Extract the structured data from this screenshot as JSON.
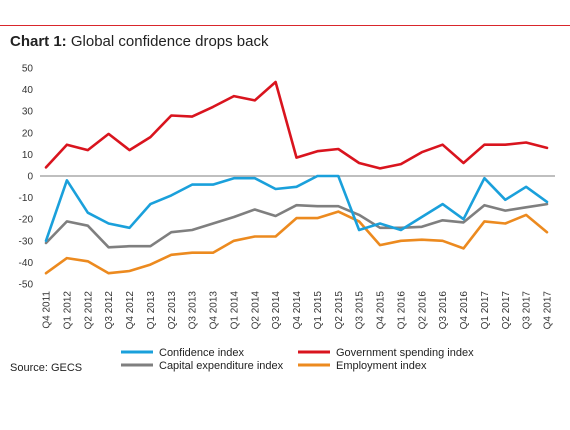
{
  "title": {
    "label": "Chart 1:",
    "text": "Global confidence drops back"
  },
  "source": "Source: GECS",
  "colors": {
    "rule": "#d9262c",
    "confidence": "#1aa0db",
    "government": "#d9141e",
    "capex": "#7f7f7f",
    "employment": "#ec8a1f",
    "axis": "#555555"
  },
  "chart_data": {
    "type": "line",
    "title": "Global confidence drops back",
    "xlabel": "",
    "ylabel": "",
    "ylim": [
      -50,
      50
    ],
    "yticks": [
      50,
      40,
      30,
      20,
      10,
      0,
      -10,
      -20,
      -30,
      -40,
      -50
    ],
    "grid": false,
    "legend_position": "bottom",
    "categories": [
      "Q4 2011",
      "Q1 2012",
      "Q2 2012",
      "Q3 2012",
      "Q4 2012",
      "Q1 2013",
      "Q2 2013",
      "Q3 2013",
      "Q4 2013",
      "Q1 2014",
      "Q2 2014",
      "Q3 2014",
      "Q4 2014",
      "Q1 2015",
      "Q2 2015",
      "Q3 2015",
      "Q4 2015",
      "Q1 2016",
      "Q2 2016",
      "Q3 2016",
      "Q4 2016",
      "Q1 2017",
      "Q2 2017",
      "Q3 2017",
      "Q4 2017"
    ],
    "series": [
      {
        "name": "Confidence index",
        "key": "confidence",
        "values": [
          -30,
          -2,
          -17,
          -22,
          -24,
          -13,
          -9,
          -4,
          -4,
          -1,
          -1,
          -6,
          -5,
          0,
          0,
          -25,
          -22,
          -25,
          -19,
          -13,
          -20,
          -1,
          -11,
          -5,
          -12
        ]
      },
      {
        "name": "Government spending index",
        "key": "government",
        "values": [
          4,
          14.5,
          12,
          19.5,
          12,
          18,
          28,
          27.5,
          32,
          37,
          35,
          43.5,
          8.5,
          11.5,
          12.5,
          6,
          3.5,
          5.5,
          11,
          14.5,
          6,
          14.5,
          14.5,
          15.5,
          13
        ]
      },
      {
        "name": "Capital expenditure index",
        "key": "capex",
        "values": [
          -31,
          -21,
          -23,
          -33,
          -32.5,
          -32.5,
          -26,
          -25,
          -22,
          -19,
          -15.5,
          -18.5,
          -13.5,
          -14,
          -14,
          -18,
          -24,
          -24,
          -23.5,
          -20.5,
          -21.5,
          -13.5,
          -16,
          -14.5,
          -13
        ]
      },
      {
        "name": "Employment index",
        "key": "employment",
        "values": [
          -45,
          -38,
          -39.5,
          -45,
          -44,
          -41,
          -36.5,
          -35.5,
          -35.5,
          -30,
          -28,
          -28,
          -19.5,
          -19.5,
          -16.5,
          -21,
          -32,
          -30,
          -29.5,
          -30,
          -33.5,
          -21,
          -22,
          -18,
          -26
        ]
      }
    ],
    "legend": [
      {
        "key": "confidence",
        "label": "Confidence index"
      },
      {
        "key": "government",
        "label": "Government spending index"
      },
      {
        "key": "capex",
        "label": "Capital expenditure index"
      },
      {
        "key": "employment",
        "label": "Employment index"
      }
    ]
  }
}
